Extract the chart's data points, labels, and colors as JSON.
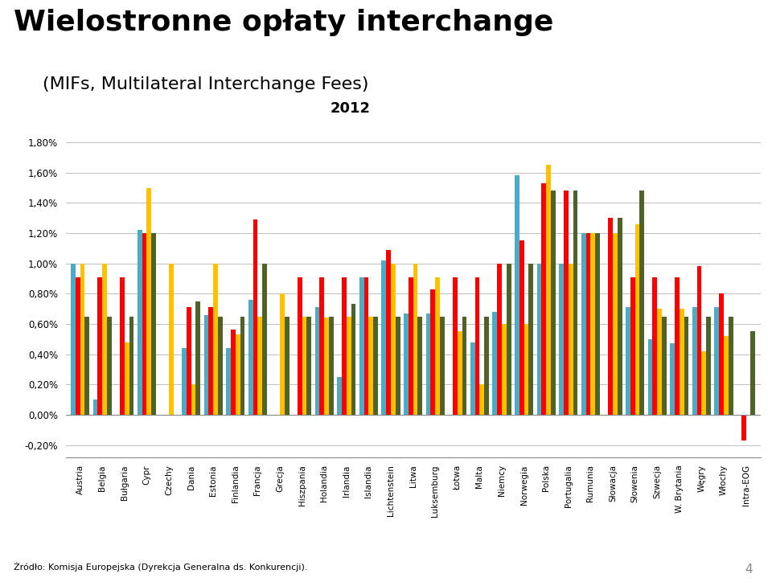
{
  "title_line1": "Wielostronne opłaty interchange",
  "title_line2": "(MIFs, Multilateral Interchange Fees)",
  "year_label": "2012",
  "categories": [
    "Austria",
    "Belgia",
    "Bułgaria",
    "Cypr",
    "Czechy",
    "Dania",
    "Estonia",
    "Finlandia",
    "Francja",
    "Grecja",
    "Hiszpania",
    "Holandia",
    "Irlandia",
    "Islandia",
    "Lichtenstein",
    "Litwa",
    "Luksemburg",
    "Łotwa",
    "Malta",
    "Niemcy",
    "Norwegia",
    "Polska",
    "Portugalia",
    "Rumunia",
    "Słowacja",
    "Słowenia",
    "Szwecja",
    "W. Brytania",
    "Węgry",
    "Włochy",
    "Intra-EOG"
  ],
  "mc_debit": [
    1.0,
    0.1,
    0.0,
    1.22,
    0.0,
    0.44,
    0.66,
    0.44,
    0.76,
    0.0,
    0.0,
    0.71,
    0.25,
    0.91,
    1.02,
    0.67,
    0.67,
    0.0,
    0.48,
    0.68,
    1.58,
    1.0,
    1.0,
    1.2,
    0.0,
    0.71,
    0.5,
    0.47,
    0.71,
    0.71,
    0.0
  ],
  "mc_credit": [
    0.91,
    0.91,
    0.91,
    1.2,
    0.0,
    0.71,
    0.71,
    0.56,
    1.29,
    0.0,
    0.91,
    0.91,
    0.91,
    0.91,
    1.09,
    0.91,
    0.83,
    0.91,
    0.91,
    1.0,
    1.15,
    1.53,
    1.48,
    1.2,
    1.3,
    0.91,
    0.91,
    0.91,
    0.98,
    0.8,
    -0.17
  ],
  "visa_debit": [
    1.0,
    1.0,
    0.48,
    1.5,
    1.0,
    0.2,
    1.0,
    0.53,
    0.65,
    0.8,
    0.65,
    0.64,
    0.65,
    0.65,
    1.0,
    1.0,
    0.91,
    0.55,
    0.2,
    0.6,
    0.6,
    1.65,
    1.0,
    1.2,
    1.2,
    1.26,
    0.7,
    0.7,
    0.42,
    0.52,
    0.0
  ],
  "visa_credit": [
    0.65,
    0.65,
    0.65,
    1.2,
    0.0,
    0.75,
    0.65,
    0.65,
    1.0,
    0.65,
    0.65,
    0.65,
    0.73,
    0.65,
    0.65,
    0.65,
    0.65,
    0.65,
    0.65,
    1.0,
    1.0,
    1.48,
    1.48,
    1.2,
    1.3,
    1.48,
    0.65,
    0.65,
    0.65,
    0.65,
    0.55
  ],
  "mc_debit_color": "#4BACC6",
  "mc_credit_color": "#FF0000",
  "visa_debit_color": "#FFC000",
  "visa_credit_color": "#4F6228",
  "ylabel_vals": [
    "-0,20%",
    "0,00%",
    "0,20%",
    "0,40%",
    "0,60%",
    "0,80%",
    "1,00%",
    "1,20%",
    "1,40%",
    "1,60%",
    "1,80%"
  ],
  "yticks": [
    -0.2,
    0.0,
    0.2,
    0.4,
    0.6,
    0.8,
    1.0,
    1.2,
    1.4,
    1.6,
    1.8
  ],
  "ylim": [
    -0.28,
    1.85
  ],
  "source": "Żródło: Komisja Europejska (Dyrekcja Generalna ds. Konkurencji).",
  "background_color": "#FFFFFF",
  "grid_color": "#BEBEBE"
}
